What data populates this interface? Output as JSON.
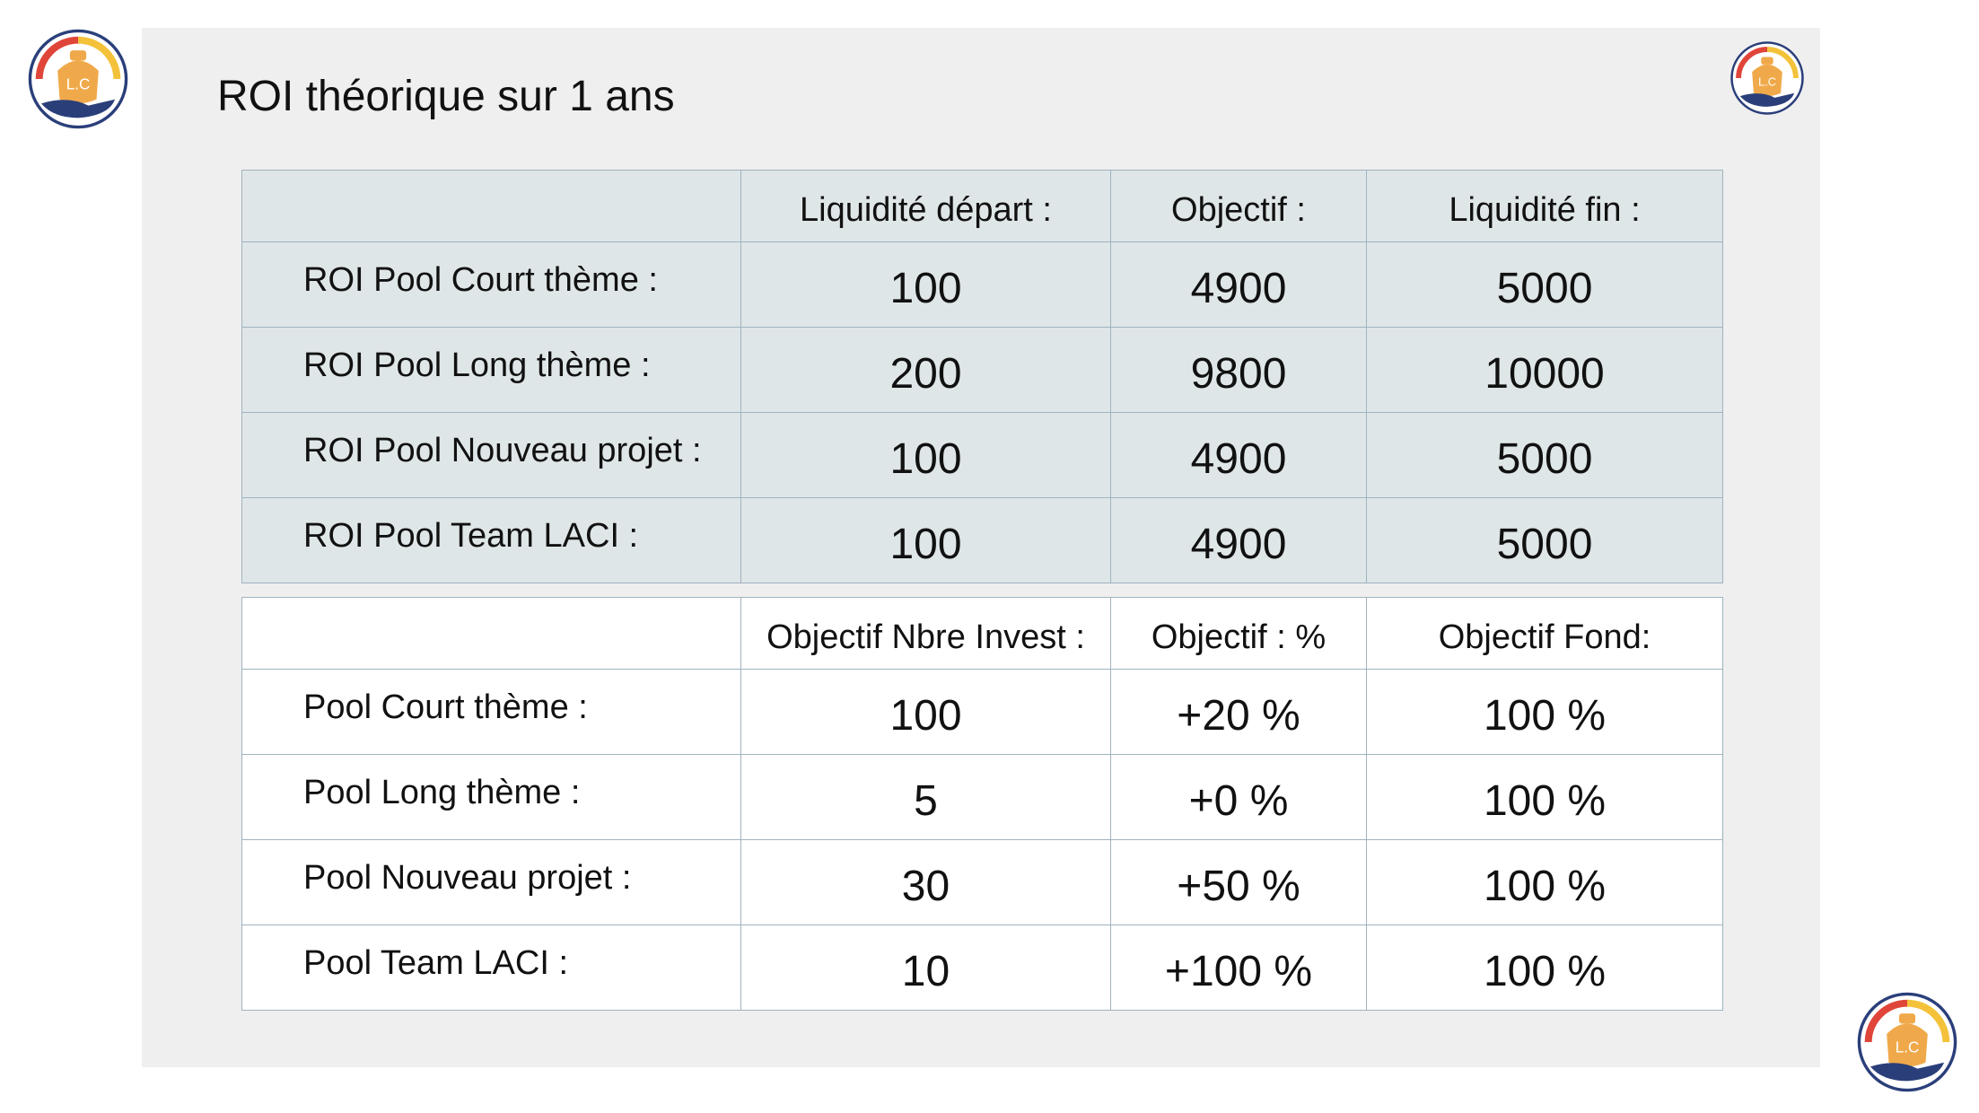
{
  "slide_title": "ROI théorique sur 1 ans",
  "logo_text": "L.C",
  "colors": {
    "logo_orange": "#f0a94a",
    "logo_red": "#e0453a",
    "logo_yellow": "#f4c23a",
    "logo_navy": "#2a3f7a",
    "roi_table_bg": "#dfe6e8"
  },
  "roi_table": {
    "headers": [
      "",
      "Liquidité départ :",
      "Objectif :",
      "Liquidité fin :"
    ],
    "rows": [
      {
        "label": "ROI Pool Court thème :",
        "start": "100",
        "objective": "4900",
        "end": "5000"
      },
      {
        "label": "ROI Pool Long thème :",
        "start": "200",
        "objective": "9800",
        "end": "10000"
      },
      {
        "label": "ROI Pool Nouveau projet :",
        "start": "100",
        "objective": "4900",
        "end": "5000"
      },
      {
        "label": "ROI Pool Team LACI :",
        "start": "100",
        "objective": "4900",
        "end": "5000"
      }
    ]
  },
  "objective_table": {
    "headers": [
      "",
      "Objectif Nbre Invest :",
      "Objectif : %",
      "Objectif Fond:"
    ],
    "rows": [
      {
        "label": "Pool Court thème :",
        "investors": "100",
        "percent": "+20 %",
        "fund": "100 %"
      },
      {
        "label": "Pool Long thème :",
        "investors": "5",
        "percent": "+0 %",
        "fund": "100 %"
      },
      {
        "label": "Pool Nouveau projet :",
        "investors": "30",
        "percent": "+50 %",
        "fund": "100 %"
      },
      {
        "label": "Pool Team LACI :",
        "investors": "10",
        "percent": "+100 %",
        "fund": "100 %"
      }
    ]
  }
}
